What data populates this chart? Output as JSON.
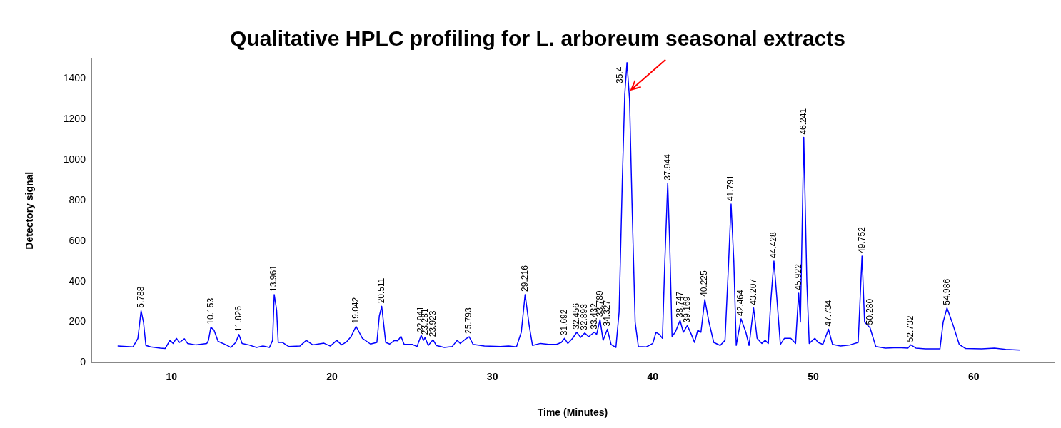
{
  "chart_data": {
    "type": "line",
    "title": "Qualitative HPLC profiling for L. arboreum seasonal extracts",
    "xlabel": "Time (Minutes)",
    "ylabel": "Detectory signal",
    "xlim": [
      5,
      65
    ],
    "xticks": [
      10,
      20,
      30,
      40,
      50,
      60
    ],
    "ylim": [
      0,
      1500
    ],
    "yticks": [
      0,
      200,
      400,
      600,
      800,
      1000,
      1200,
      1400
    ],
    "grid": false,
    "legend": false,
    "marker": "none",
    "line_style": "solid",
    "series": [
      {
        "color": "#0000ff",
        "x": [
          6.64,
          7.2,
          7.6,
          7.9,
          8.1,
          8.25,
          8.4,
          8.7,
          9.3,
          9.6,
          9.9,
          10.1,
          10.3,
          10.5,
          10.8,
          11.0,
          11.5,
          12.2,
          12.3,
          12.45,
          12.65,
          12.9,
          13.4,
          13.7,
          14.0,
          14.2,
          14.4,
          14.8,
          15.3,
          15.7,
          16.1,
          16.3,
          16.4,
          16.55,
          16.65,
          16.9,
          17.3,
          18.0,
          18.4,
          18.8,
          19.5,
          19.9,
          20.3,
          20.6,
          20.9,
          21.2,
          21.5,
          21.9,
          22.4,
          22.8,
          22.95,
          23.1,
          23.35,
          23.6,
          23.9,
          24.1,
          24.3,
          24.5,
          25.0,
          25.3,
          25.56,
          25.7,
          25.8,
          26.0,
          26.3,
          26.5,
          27.0,
          27.5,
          27.8,
          28.0,
          28.3,
          28.55,
          28.8,
          29.5,
          30.5,
          31.0,
          31.5,
          31.8,
          32.04,
          32.3,
          32.5,
          33.0,
          33.5,
          34.0,
          34.3,
          34.5,
          34.7,
          35.0,
          35.26,
          35.5,
          35.76,
          36.0,
          36.35,
          36.5,
          36.71,
          36.9,
          37.17,
          37.4,
          37.7,
          37.9,
          38.1,
          38.25,
          38.39,
          38.55,
          38.7,
          38.9,
          39.1,
          39.6,
          40.0,
          40.2,
          40.4,
          40.6,
          40.75,
          40.93,
          41.05,
          41.2,
          41.4,
          41.7,
          41.9,
          42.15,
          42.4,
          42.6,
          42.8,
          43.0,
          43.24,
          43.5,
          43.8,
          44.2,
          44.5,
          44.7,
          44.88,
          45.05,
          45.2,
          45.5,
          45.8,
          46.0,
          46.28,
          46.5,
          46.8,
          47.0,
          47.2,
          47.35,
          47.55,
          47.75,
          47.95,
          48.2,
          48.6,
          48.9,
          49.09,
          49.2,
          49.41,
          49.6,
          49.75,
          50.1,
          50.3,
          50.6,
          50.95,
          51.2,
          51.7,
          52.3,
          52.8,
          53.04,
          53.2,
          53.54,
          53.9,
          54.5,
          55.3,
          55.9,
          56.08,
          56.4,
          57.0,
          57.9,
          58.1,
          58.34,
          58.7,
          59.1,
          59.5,
          60.5,
          61.3,
          62.0,
          62.9
        ],
        "values": [
          82,
          80,
          78,
          120,
          256,
          200,
          85,
          78,
          72,
          70,
          110,
          95,
          120,
          100,
          118,
          95,
          88,
          95,
          110,
          175,
          160,
          105,
          88,
          75,
          100,
          139,
          95,
          88,
          75,
          82,
          75,
          110,
          336,
          260,
          100,
          100,
          80,
          82,
          110,
          88,
          96,
          82,
          110,
          88,
          102,
          130,
          179,
          120,
          92,
          100,
          230,
          278,
          100,
          92,
          110,
          108,
          130,
          90,
          90,
          80,
          135,
          110,
          124,
          85,
          113,
          85,
          75,
          80,
          110,
          95,
          115,
          128,
          90,
          82,
          80,
          82,
          78,
          150,
          336,
          180,
          85,
          95,
          90,
          90,
          100,
          120,
          95,
          120,
          150,
          125,
          146,
          128,
          150,
          140,
          212,
          110,
          165,
          90,
          75,
          250,
          900,
          1320,
          1480,
          1300,
          800,
          200,
          80,
          78,
          95,
          150,
          140,
          120,
          500,
          885,
          600,
          130,
          150,
          208,
          150,
          183,
          140,
          100,
          160,
          150,
          311,
          200,
          100,
          85,
          110,
          450,
          782,
          500,
          85,
          216,
          150,
          85,
          270,
          120,
          95,
          110,
          95,
          300,
          501,
          300,
          90,
          120,
          120,
          95,
          343,
          200,
          1111,
          400,
          95,
          120,
          100,
          90,
          165,
          90,
          82,
          88,
          100,
          526,
          200,
          172,
          80,
          72,
          74,
          72,
          88,
          72,
          68,
          68,
          200,
          270,
          190,
          90,
          70,
          68,
          72,
          66,
          62
        ]
      }
    ],
    "annotations": [
      {
        "text": "5.788",
        "x": 8.1,
        "y": 256
      },
      {
        "text": "10.153",
        "x": 12.45,
        "y": 175
      },
      {
        "text": "11.826",
        "x": 14.2,
        "y": 139
      },
      {
        "text": "13.961",
        "x": 16.4,
        "y": 336
      },
      {
        "text": "19.042",
        "x": 21.5,
        "y": 179
      },
      {
        "text": "20.511",
        "x": 23.1,
        "y": 278
      },
      {
        "text": "22.941",
        "x": 25.56,
        "y": 135
      },
      {
        "text": "23.281",
        "x": 25.8,
        "y": 124
      },
      {
        "text": "23.923",
        "x": 26.3,
        "y": 113
      },
      {
        "text": "25.793",
        "x": 28.55,
        "y": 128
      },
      {
        "text": "29.216",
        "x": 32.04,
        "y": 336
      },
      {
        "text": "31.692",
        "x": 34.5,
        "y": 120
      },
      {
        "text": "32.456",
        "x": 35.26,
        "y": 150
      },
      {
        "text": "32.893",
        "x": 35.76,
        "y": 146
      },
      {
        "text": "33.432",
        "x": 36.35,
        "y": 150
      },
      {
        "text": "33.789",
        "x": 36.71,
        "y": 212
      },
      {
        "text": "34.327",
        "x": 37.17,
        "y": 165
      },
      {
        "text": "35.4",
        "x": 38.39,
        "y": 1480
      },
      {
        "text": "37.944",
        "x": 40.93,
        "y": 885
      },
      {
        "text": "38.747",
        "x": 41.7,
        "y": 208
      },
      {
        "text": "39.169",
        "x": 42.15,
        "y": 183
      },
      {
        "text": "40.225",
        "x": 43.24,
        "y": 311
      },
      {
        "text": "41.791",
        "x": 44.88,
        "y": 782
      },
      {
        "text": "42.464",
        "x": 45.5,
        "y": 216
      },
      {
        "text": "43.207",
        "x": 46.28,
        "y": 270
      },
      {
        "text": "44.428",
        "x": 47.55,
        "y": 501
      },
      {
        "text": "45.922",
        "x": 49.09,
        "y": 343
      },
      {
        "text": "46.241",
        "x": 49.41,
        "y": 1111
      },
      {
        "text": "47.734",
        "x": 50.95,
        "y": 165
      },
      {
        "text": "49.752",
        "x": 53.04,
        "y": 526
      },
      {
        "text": "50.280",
        "x": 53.54,
        "y": 172
      },
      {
        "text": "52.732",
        "x": 56.08,
        "y": 88
      },
      {
        "text": "54.986",
        "x": 58.34,
        "y": 270
      }
    ]
  }
}
